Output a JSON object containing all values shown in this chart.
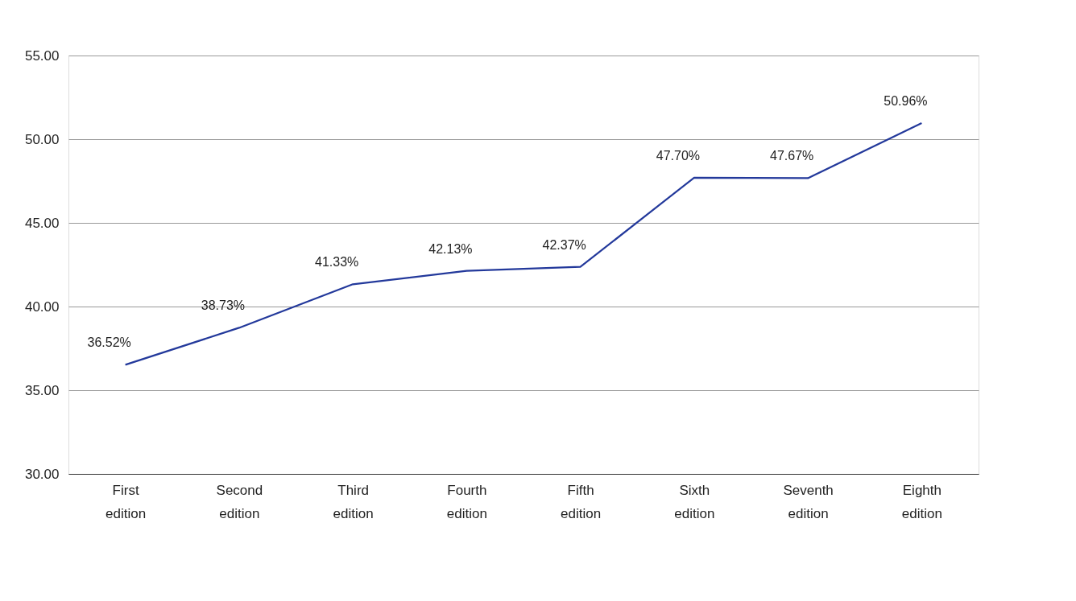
{
  "chart_data": {
    "type": "line",
    "categories": [
      "First edition",
      "Second edition",
      "Third edition",
      "Fourth edition",
      "Fifth edition",
      "Sixth edition",
      "Seventh edition",
      "Eighth edition"
    ],
    "series": [
      {
        "color": "#23399b",
        "values": [
          36.52,
          38.73,
          41.33,
          42.13,
          42.37,
          47.7,
          47.67,
          50.96
        ],
        "value_labels": [
          "36.52%",
          "38.73%",
          "41.33%",
          "42.13%",
          "42.37%",
          "47.70%",
          "47.67%",
          "50.96%"
        ]
      }
    ],
    "ylim": [
      30,
      55
    ],
    "yticks": [
      {
        "value": 30,
        "label": "30.00"
      },
      {
        "value": 35,
        "label": "35.00"
      },
      {
        "value": 40,
        "label": "40.00"
      },
      {
        "value": 45,
        "label": "45.00"
      },
      {
        "value": 50,
        "label": "50.00"
      },
      {
        "value": 55,
        "label": "55.00"
      }
    ],
    "grid": "y",
    "marker": "none",
    "line_style": "solid"
  }
}
